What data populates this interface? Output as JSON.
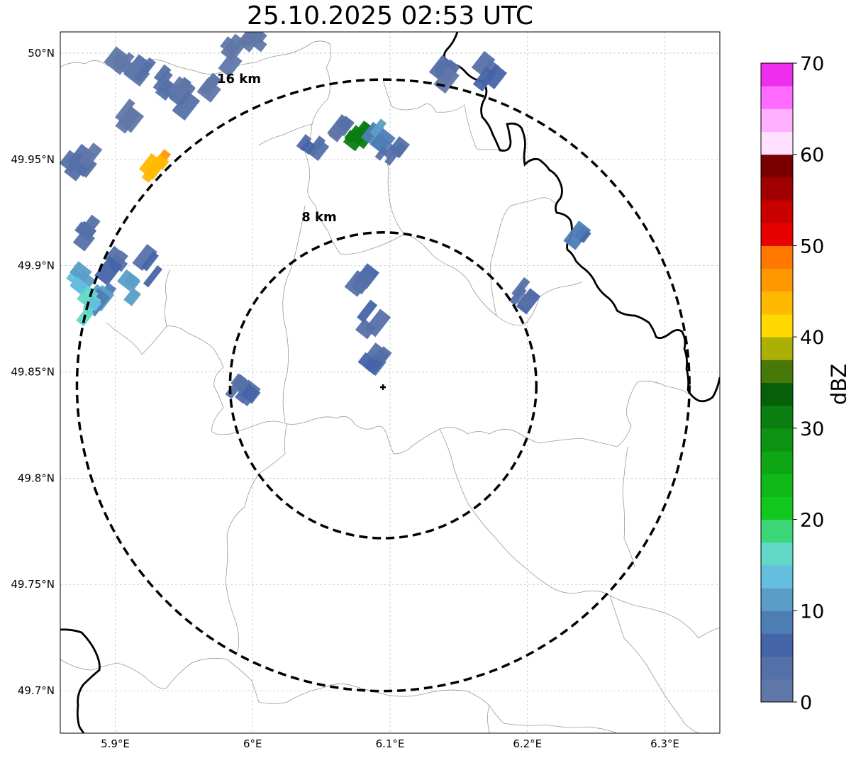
{
  "title": "25.10.2025 02:53 UTC",
  "axes": {
    "lon_ticks": [
      "5.9°E",
      "6°E",
      "6.1°E",
      "6.2°E",
      "6.3°E"
    ],
    "lat_ticks": [
      "50°N",
      "49.95°N",
      "49.9°N",
      "49.85°N",
      "49.8°N",
      "49.75°N",
      "49.7°N"
    ],
    "lon_values": [
      5.9,
      6.0,
      6.1,
      6.2,
      6.3
    ],
    "lat_values": [
      50.0,
      49.95,
      49.9,
      49.85,
      49.8,
      49.75,
      49.7
    ],
    "extent": {
      "lon_min": 5.86,
      "lon_max": 6.34,
      "lat_min": 49.68,
      "lat_max": 50.01
    }
  },
  "radar": {
    "center": {
      "lon": 6.095,
      "lat": 49.8437
    },
    "rings": [
      {
        "label": "8 km",
        "radius_km": 8
      },
      {
        "label": "16 km",
        "radius_km": 16
      }
    ]
  },
  "colorbar": {
    "label": "dBZ",
    "ticks": [
      "0",
      "10",
      "20",
      "30",
      "40",
      "50",
      "60",
      "70"
    ],
    "min": 0,
    "max": 70,
    "colors": [
      "#6077a8",
      "#5570a8",
      "#4664a8",
      "#4e7db4",
      "#5a9ec8",
      "#64bede",
      "#62d8c8",
      "#3cd878",
      "#12c81e",
      "#10b818",
      "#0ea614",
      "#0c9412",
      "#0a7e10",
      "#066008",
      "#487808",
      "#acb004",
      "#ffd800",
      "#ffb800",
      "#ff9800",
      "#ff7800",
      "#e60000",
      "#c80000",
      "#a00000",
      "#7a0000",
      "#ffe0ff",
      "#ffb0ff",
      "#ff6cff",
      "#ee2eee"
    ]
  },
  "chart_data": {
    "type": "heatmap",
    "title": "25.10.2025 02:53 UTC",
    "colorbar_label": "dBZ",
    "value_range": [
      0,
      70
    ],
    "cells": [
      {
        "lon": 5.905,
        "lat": 49.995,
        "dbz": 2
      },
      {
        "lon": 5.92,
        "lat": 49.99,
        "dbz": 3
      },
      {
        "lon": 5.935,
        "lat": 49.985,
        "dbz": 5
      },
      {
        "lon": 5.95,
        "lat": 49.98,
        "dbz": 3
      },
      {
        "lon": 5.965,
        "lat": 49.985,
        "dbz": 2
      },
      {
        "lon": 5.985,
        "lat": 49.998,
        "dbz": 2
      },
      {
        "lon": 6.002,
        "lat": 50.005,
        "dbz": 1
      },
      {
        "lon": 5.908,
        "lat": 49.968,
        "dbz": 1
      },
      {
        "lon": 5.876,
        "lat": 49.95,
        "dbz": 3
      },
      {
        "lon": 5.932,
        "lat": 49.946,
        "dbz": 44
      },
      {
        "lon": 5.88,
        "lat": 49.915,
        "dbz": 5
      },
      {
        "lon": 5.9,
        "lat": 49.9,
        "dbz": 4
      },
      {
        "lon": 5.875,
        "lat": 49.895,
        "dbz": 13
      },
      {
        "lon": 5.89,
        "lat": 49.885,
        "dbz": 10
      },
      {
        "lon": 5.91,
        "lat": 49.89,
        "dbz": 12
      },
      {
        "lon": 5.88,
        "lat": 49.88,
        "dbz": 16
      },
      {
        "lon": 5.925,
        "lat": 49.9,
        "dbz": 4
      },
      {
        "lon": 6.04,
        "lat": 49.954,
        "dbz": 5
      },
      {
        "lon": 6.06,
        "lat": 49.965,
        "dbz": 3
      },
      {
        "lon": 6.074,
        "lat": 49.962,
        "dbz": 33
      },
      {
        "lon": 6.09,
        "lat": 49.96,
        "dbz": 9
      },
      {
        "lon": 6.1,
        "lat": 49.955,
        "dbz": 6
      },
      {
        "lon": 6.17,
        "lat": 49.99,
        "dbz": 4
      },
      {
        "lon": 6.14,
        "lat": 49.99,
        "dbz": 2
      },
      {
        "lon": 6.24,
        "lat": 49.912,
        "dbz": 8
      },
      {
        "lon": 6.195,
        "lat": 49.885,
        "dbz": 6
      },
      {
        "lon": 6.078,
        "lat": 49.896,
        "dbz": 5
      },
      {
        "lon": 6.084,
        "lat": 49.874,
        "dbz": 6
      },
      {
        "lon": 6.09,
        "lat": 49.855,
        "dbz": 5
      },
      {
        "lon": 5.995,
        "lat": 49.843,
        "dbz": 5
      }
    ]
  }
}
